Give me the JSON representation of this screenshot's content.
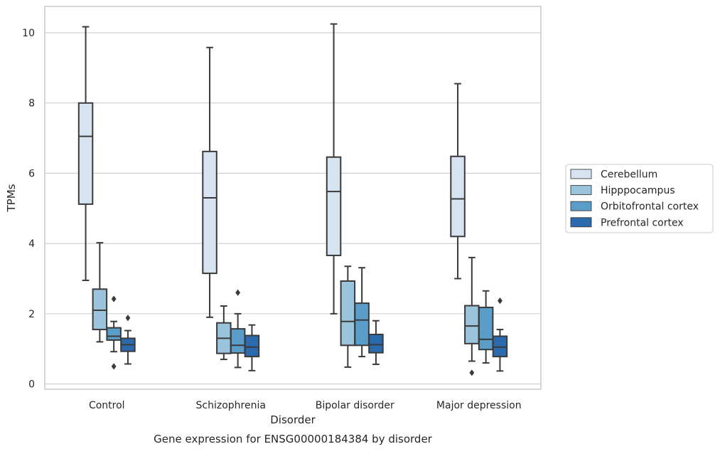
{
  "chart_data": {
    "type": "box",
    "title": "Gene expression for ENSG00000184384 by disorder",
    "xlabel": "Disorder",
    "ylabel": "TPMs",
    "ylim": [
      -0.15,
      10.75
    ],
    "yticks": [
      0,
      2,
      4,
      6,
      8,
      10
    ],
    "grid": true,
    "legend_position": "right",
    "categories": [
      "Control",
      "Schizophrenia",
      "Bipolar disorder",
      "Major depression"
    ],
    "series": [
      {
        "name": "Cerebellum",
        "color": "#d6e4f2",
        "boxes": [
          {
            "whisker_low": 2.95,
            "q1": 5.12,
            "median": 7.05,
            "q3": 8.0,
            "whisker_high": 10.17,
            "outliers": []
          },
          {
            "whisker_low": 1.9,
            "q1": 3.15,
            "median": 5.3,
            "q3": 6.62,
            "whisker_high": 9.58,
            "outliers": []
          },
          {
            "whisker_low": 2.0,
            "q1": 3.66,
            "median": 5.48,
            "q3": 6.46,
            "whisker_high": 10.25,
            "outliers": []
          },
          {
            "whisker_low": 3.0,
            "q1": 4.2,
            "median": 5.27,
            "q3": 6.48,
            "whisker_high": 8.55,
            "outliers": []
          }
        ]
      },
      {
        "name": "Hipppocampus",
        "color": "#9ac3dc",
        "boxes": [
          {
            "whisker_low": 1.2,
            "q1": 1.55,
            "median": 2.1,
            "q3": 2.7,
            "whisker_high": 4.02,
            "outliers": []
          },
          {
            "whisker_low": 0.7,
            "q1": 0.87,
            "median": 1.3,
            "q3": 1.74,
            "whisker_high": 2.22,
            "outliers": []
          },
          {
            "whisker_low": 0.48,
            "q1": 1.1,
            "median": 1.78,
            "q3": 2.93,
            "whisker_high": 3.35,
            "outliers": []
          },
          {
            "whisker_low": 0.65,
            "q1": 1.15,
            "median": 1.65,
            "q3": 2.23,
            "whisker_high": 3.6,
            "outliers": [
              0.32
            ]
          }
        ]
      },
      {
        "name": "Orbitofrontal cortex",
        "color": "#5a9dc9",
        "boxes": [
          {
            "whisker_low": 0.92,
            "q1": 1.25,
            "median": 1.36,
            "q3": 1.6,
            "whisker_high": 1.78,
            "outliers": [
              2.42,
              0.5
            ]
          },
          {
            "whisker_low": 0.47,
            "q1": 0.88,
            "median": 1.1,
            "q3": 1.57,
            "whisker_high": 2.0,
            "outliers": [
              2.6
            ]
          },
          {
            "whisker_low": 0.78,
            "q1": 1.1,
            "median": 1.82,
            "q3": 2.3,
            "whisker_high": 3.31,
            "outliers": []
          },
          {
            "whisker_low": 0.6,
            "q1": 0.98,
            "median": 1.27,
            "q3": 2.18,
            "whisker_high": 2.65,
            "outliers": []
          }
        ]
      },
      {
        "name": "Prefrontal cortex",
        "color": "#2b6bad",
        "boxes": [
          {
            "whisker_low": 0.57,
            "q1": 0.93,
            "median": 1.12,
            "q3": 1.3,
            "whisker_high": 1.52,
            "outliers": [
              1.88
            ]
          },
          {
            "whisker_low": 0.38,
            "q1": 0.78,
            "median": 1.05,
            "q3": 1.38,
            "whisker_high": 1.68,
            "outliers": []
          },
          {
            "whisker_low": 0.56,
            "q1": 0.89,
            "median": 1.12,
            "q3": 1.41,
            "whisker_high": 1.8,
            "outliers": []
          },
          {
            "whisker_low": 0.37,
            "q1": 0.78,
            "median": 1.05,
            "q3": 1.36,
            "whisker_high": 1.55,
            "outliers": [
              2.37
            ]
          }
        ]
      }
    ],
    "colors": {
      "grid": "#cccccc",
      "frame": "#cccccc",
      "box_edge": "#3a3a3a",
      "outlier": "#3a3a3a"
    }
  }
}
